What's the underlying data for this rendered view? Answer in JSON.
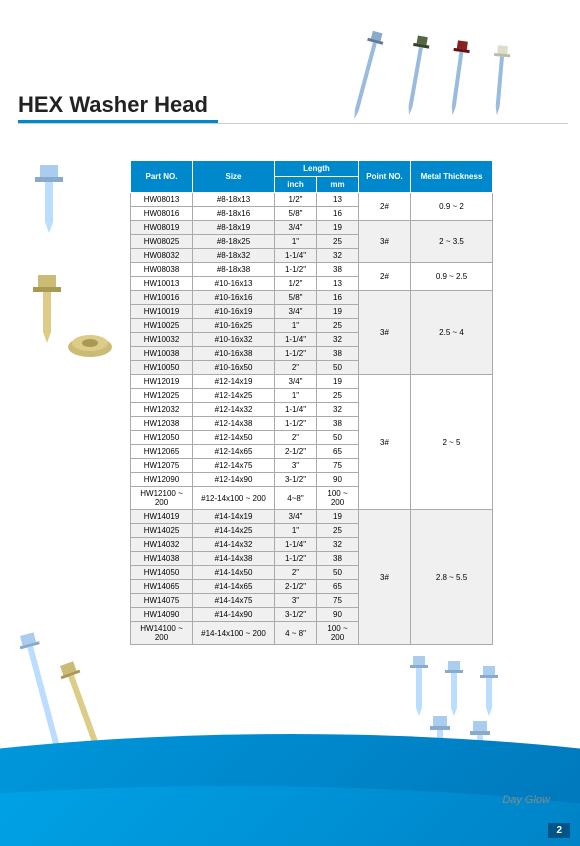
{
  "title": "HEX Washer Head",
  "headers": {
    "part": "Part NO.",
    "size": "Size",
    "length": "Length",
    "inch": "inch",
    "mm": "mm",
    "point": "Point NO.",
    "metal": "Metal Thickness"
  },
  "groups": [
    {
      "point": "2#",
      "metal": "0.9 ~ 2",
      "alt": false,
      "rows": [
        {
          "part": "HW08013",
          "size": "#8-18x13",
          "inch": "1/2\"",
          "mm": "13"
        },
        {
          "part": "HW08016",
          "size": "#8-18x16",
          "inch": "5/8\"",
          "mm": "16"
        }
      ]
    },
    {
      "point": "3#",
      "metal": "2 ~ 3.5",
      "alt": true,
      "rows": [
        {
          "part": "HW08019",
          "size": "#8-18x19",
          "inch": "3/4\"",
          "mm": "19"
        },
        {
          "part": "HW08025",
          "size": "#8-18x25",
          "inch": "1\"",
          "mm": "25"
        },
        {
          "part": "HW08032",
          "size": "#8-18x32",
          "inch": "1-1/4\"",
          "mm": "32"
        }
      ]
    },
    {
      "point": "2#",
      "metal": "0.9 ~ 2.5",
      "alt": false,
      "rows": [
        {
          "part": "HW08038",
          "size": "#8-18x38",
          "inch": "1-1/2\"",
          "mm": "38"
        },
        {
          "part": "HW10013",
          "size": "#10-16x13",
          "inch": "1/2\"",
          "mm": "13"
        }
      ]
    },
    {
      "point": "3#",
      "metal": "2.5 ~ 4",
      "alt": true,
      "rows": [
        {
          "part": "HW10016",
          "size": "#10-16x16",
          "inch": "5/8\"",
          "mm": "16"
        },
        {
          "part": "HW10019",
          "size": "#10-16x19",
          "inch": "3/4\"",
          "mm": "19"
        },
        {
          "part": "HW10025",
          "size": "#10-16x25",
          "inch": "1\"",
          "mm": "25"
        },
        {
          "part": "HW10032",
          "size": "#10-16x32",
          "inch": "1-1/4\"",
          "mm": "32"
        },
        {
          "part": "HW10038",
          "size": "#10-16x38",
          "inch": "1-1/2\"",
          "mm": "38"
        },
        {
          "part": "HW10050",
          "size": "#10-16x50",
          "inch": "2\"",
          "mm": "50"
        }
      ]
    },
    {
      "point": "3#",
      "metal": "2 ~ 5",
      "alt": false,
      "rows": [
        {
          "part": "HW12019",
          "size": "#12-14x19",
          "inch": "3/4\"",
          "mm": "19"
        },
        {
          "part": "HW12025",
          "size": "#12-14x25",
          "inch": "1\"",
          "mm": "25"
        },
        {
          "part": "HW12032",
          "size": "#12-14x32",
          "inch": "1-1/4\"",
          "mm": "32"
        },
        {
          "part": "HW12038",
          "size": "#12-14x38",
          "inch": "1-1/2\"",
          "mm": "38"
        },
        {
          "part": "HW12050",
          "size": "#12-14x50",
          "inch": "2\"",
          "mm": "50"
        },
        {
          "part": "HW12065",
          "size": "#12-14x65",
          "inch": "2-1/2\"",
          "mm": "65"
        },
        {
          "part": "HW12075",
          "size": "#12-14x75",
          "inch": "3\"",
          "mm": "75"
        },
        {
          "part": "HW12090",
          "size": "#12-14x90",
          "inch": "3-1/2\"",
          "mm": "90"
        },
        {
          "part": "HW12100 ~ 200",
          "size": "#12-14x100 ~ 200",
          "inch": "4~8\"",
          "mm": "100 ~ 200"
        }
      ]
    },
    {
      "point": "3#",
      "metal": "2.8 ~ 5.5",
      "alt": true,
      "rows": [
        {
          "part": "HW14019",
          "size": "#14-14x19",
          "inch": "3/4\"",
          "mm": "19"
        },
        {
          "part": "HW14025",
          "size": "#14-14x25",
          "inch": "1\"",
          "mm": "25"
        },
        {
          "part": "HW14032",
          "size": "#14-14x32",
          "inch": "1-1/4\"",
          "mm": "32"
        },
        {
          "part": "HW14038",
          "size": "#14-14x38",
          "inch": "1-1/2\"",
          "mm": "38"
        },
        {
          "part": "HW14050",
          "size": "#14-14x50",
          "inch": "2\"",
          "mm": "50"
        },
        {
          "part": "HW14065",
          "size": "#14-14x65",
          "inch": "2-1/2\"",
          "mm": "65"
        },
        {
          "part": "HW14075",
          "size": "#14-14x75",
          "inch": "3\"",
          "mm": "75"
        },
        {
          "part": "HW14090",
          "size": "#14-14x90",
          "inch": "3-1/2\"",
          "mm": "90"
        },
        {
          "part": "HW14100 ~ 200",
          "size": "#14-14x100 ~ 200",
          "inch": "4 ~ 8\"",
          "mm": "100 ~ 200"
        }
      ]
    }
  ],
  "page_number": "2",
  "logo": "Day Glow",
  "colors": {
    "header_bg": "#0088cc",
    "accent": "#0088cc",
    "wave1": "#0099dd",
    "wave2": "#00aaee"
  }
}
